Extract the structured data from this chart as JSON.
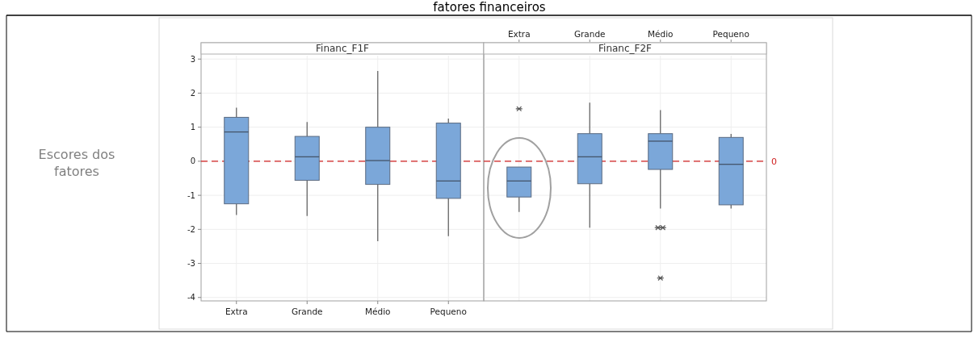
{
  "chart_data": [
    {
      "type": "box",
      "title": "Financ_F1F",
      "ylabel": "Escores dos fatores",
      "annotations": [
        "fatores financeiros"
      ],
      "categories": [
        "Extra",
        "Grande",
        "Médio",
        "Pequeno"
      ],
      "ylim": [
        -4.1,
        3.1
      ],
      "yticks": [
        -4,
        -3,
        -2,
        -1,
        0,
        1,
        2,
        3
      ],
      "grid": true,
      "series": [
        {
          "color": "#7ba7d9",
          "boxes": [
            {
              "low": -1.58,
              "q1": -1.25,
              "median": 0.86,
              "q3": 1.29,
              "high": 1.57
            },
            {
              "low": -1.61,
              "q1": -0.56,
              "median": 0.13,
              "q3": 0.73,
              "high": 1.15
            },
            {
              "low": -2.35,
              "q1": -0.68,
              "median": 0.02,
              "q3": 1.0,
              "high": 2.65
            },
            {
              "low": -2.2,
              "q1": -1.09,
              "median": -0.58,
              "q3": 1.12,
              "high": 1.25
            }
          ]
        }
      ],
      "ref_lines": [
        {
          "axis": "y",
          "value": 0,
          "color": "#d02020",
          "line_style": "dashed"
        }
      ]
    },
    {
      "type": "box",
      "title": "Financ_F2F",
      "categories": [
        "Extra",
        "Grande",
        "Médio",
        "Pequeno"
      ],
      "ylim": [
        -4.1,
        3.1
      ],
      "yticks": [
        -4,
        -3,
        -2,
        -1,
        0,
        1,
        2,
        3
      ],
      "tick_labels": "x",
      "grid": true,
      "marker": "cross",
      "series": [
        {
          "color": "#7ba7d9",
          "boxes": [
            {
              "low": -1.49,
              "q1": -1.05,
              "median": -0.58,
              "q3": -0.17,
              "high": -0.17,
              "outliers": [
                1.54
              ]
            },
            {
              "low": -1.95,
              "q1": -0.66,
              "median": 0.13,
              "q3": 0.81,
              "high": 1.72
            },
            {
              "low": -1.39,
              "q1": -0.24,
              "median": 0.59,
              "q3": 0.81,
              "high": 1.5,
              "outliers": [
                -1.95,
                -1.95,
                -3.43
              ]
            },
            {
              "low": -1.39,
              "q1": -1.28,
              "median": -0.09,
              "q3": 0.7,
              "high": 0.8
            }
          ]
        }
      ],
      "ref_lines": [
        {
          "axis": "y",
          "value": 0,
          "label": "0",
          "color": "#d02020",
          "line_style": "dashed"
        }
      ]
    }
  ]
}
